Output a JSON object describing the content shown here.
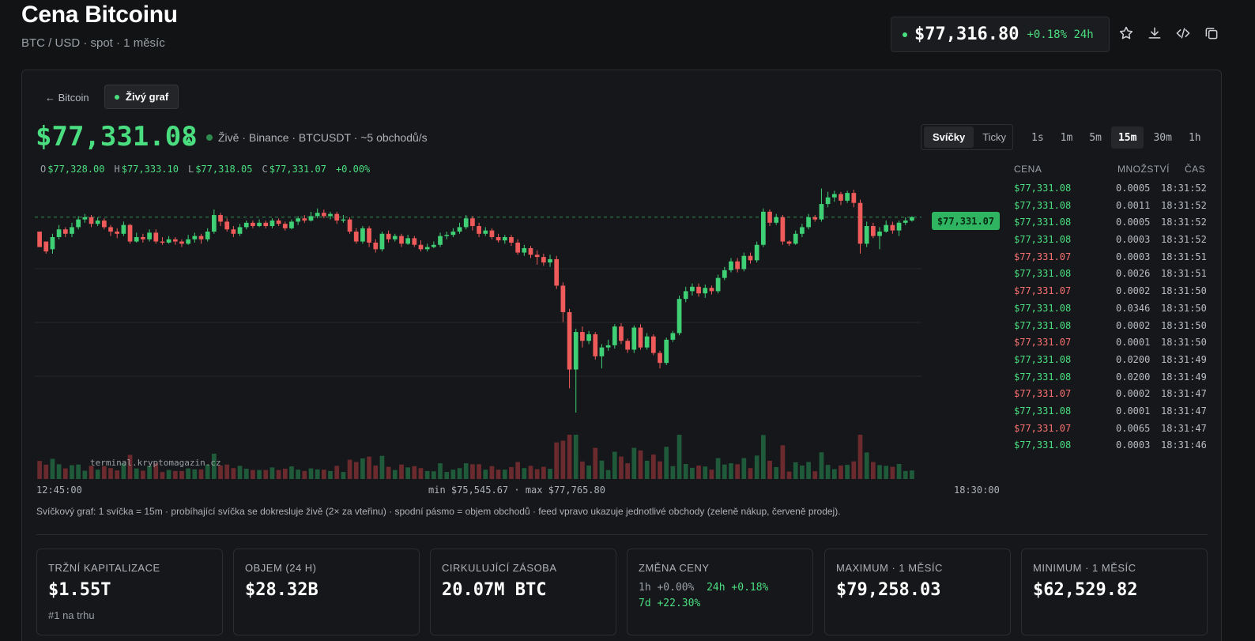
{
  "header": {
    "title": "Cena Bitcoinu",
    "subtitle": "BTC / USD · spot · 1 měsíc",
    "ticker_price": "$77,316.80",
    "ticker_change": "+0.18% 24h",
    "icons": [
      "star-icon",
      "download-icon",
      "code-icon",
      "copy-icon"
    ]
  },
  "tabs": {
    "back": "← Bitcoin",
    "live": "Živý graf"
  },
  "price": {
    "current": "$77,331.08",
    "arrow": "▲",
    "live_info": "Živě · Binance · BTCUSDT · ~5 obchodů/s"
  },
  "modes": [
    "Svíčky",
    "Ticky"
  ],
  "active_mode": "Svíčky",
  "intervals": [
    "1s",
    "1m",
    "5m",
    "15m",
    "30m",
    "1h"
  ],
  "active_interval": "15m",
  "ohlc": {
    "o_label": "O",
    "o": "$77,328.00",
    "h_label": "H",
    "h": "$77,333.10",
    "l_label": "L",
    "l": "$77,318.05",
    "c_label": "C",
    "c": "$77,331.07",
    "change": "+0.00%"
  },
  "chart": {
    "last_price_tag": "$77,331.07",
    "watermark": "terminal.kryptomagazin.cz",
    "x_start": "12:45:00",
    "x_range_text": "min $75,545.67 · max $77,765.80",
    "x_end": "18:30:00",
    "note": "Svíčkový graf: 1 svíčka = 15m · probíhající svíčka se dokresluje živě (2× za vteřinu) · spodní pásmo = objem obchodů · feed vpravo ukazuje jednotlivé obchody (zeleně nákup, červeně prodej).",
    "colors": {
      "up": "#3fcf75",
      "down": "#ef5a5a",
      "vol_up": "#1f5a3a",
      "vol_down": "#6b2a2d"
    }
  },
  "chart_data": {
    "type": "candlestick",
    "ylim": [
      75545.67,
      77765.8
    ],
    "last": 77331.07,
    "x_start": "12:45:00",
    "x_end": "18:30:00",
    "candles": [
      [
        77200,
        77060,
        77120,
        77110
      ],
      [
        77110,
        77020,
        77050,
        77000
      ],
      [
        77040,
        77150,
        77180,
        77000
      ],
      [
        77150,
        77220,
        77260,
        77130
      ],
      [
        77220,
        77180,
        77240,
        77150
      ],
      [
        77180,
        77240,
        77280,
        77150
      ],
      [
        77240,
        77310,
        77340,
        77220
      ],
      [
        77310,
        77330,
        77360,
        77280
      ],
      [
        77330,
        77270,
        77350,
        77240
      ],
      [
        77270,
        77300,
        77330,
        77250
      ],
      [
        77300,
        77240,
        77320,
        77220
      ],
      [
        77240,
        77200,
        77260,
        77160
      ],
      [
        77200,
        77180,
        77230,
        77140
      ],
      [
        77180,
        77260,
        77290,
        77160
      ],
      [
        77260,
        77110,
        77270,
        77090
      ],
      [
        77110,
        77150,
        77190,
        77100
      ],
      [
        77150,
        77130,
        77180,
        77100
      ],
      [
        77130,
        77190,
        77220,
        77110
      ],
      [
        77190,
        77110,
        77220,
        77090
      ],
      [
        77110,
        77100,
        77150,
        77080
      ],
      [
        77100,
        77130,
        77160,
        77090
      ],
      [
        77130,
        77110,
        77150,
        77080
      ],
      [
        77110,
        77090,
        77130,
        77060
      ],
      [
        77090,
        77130,
        77170,
        77080
      ],
      [
        77130,
        77160,
        77190,
        77100
      ],
      [
        77160,
        77130,
        77180,
        77090
      ],
      [
        77130,
        77200,
        77230,
        77110
      ],
      [
        77200,
        77350,
        77400,
        77180
      ],
      [
        77350,
        77290,
        77370,
        77250
      ],
      [
        77290,
        77220,
        77320,
        77200
      ],
      [
        77220,
        77180,
        77250,
        77150
      ],
      [
        77180,
        77240,
        77270,
        77160
      ],
      [
        77240,
        77280,
        77300,
        77220
      ],
      [
        77280,
        77250,
        77300,
        77230
      ],
      [
        77250,
        77280,
        77310,
        77240
      ],
      [
        77280,
        77250,
        77300,
        77230
      ],
      [
        77250,
        77300,
        77320,
        77230
      ],
      [
        77300,
        77270,
        77320,
        77250
      ],
      [
        77270,
        77230,
        77290,
        77210
      ],
      [
        77230,
        77290,
        77310,
        77220
      ],
      [
        77290,
        77320,
        77340,
        77260
      ],
      [
        77320,
        77300,
        77350,
        77280
      ],
      [
        77300,
        77340,
        77380,
        77290
      ],
      [
        77340,
        77370,
        77410,
        77320
      ],
      [
        77370,
        77340,
        77400,
        77320
      ],
      [
        77340,
        77360,
        77380,
        77310
      ],
      [
        77360,
        77300,
        77380,
        77270
      ],
      [
        77300,
        77310,
        77350,
        77280
      ],
      [
        77310,
        77200,
        77330,
        77180
      ],
      [
        77200,
        77110,
        77230,
        77090
      ],
      [
        77110,
        77230,
        77250,
        77090
      ],
      [
        77230,
        77100,
        77250,
        77060
      ],
      [
        77100,
        77040,
        77130,
        77010
      ],
      [
        77040,
        77180,
        77200,
        77020
      ],
      [
        77180,
        77130,
        77210,
        77100
      ],
      [
        77130,
        77160,
        77180,
        77110
      ],
      [
        77160,
        77090,
        77180,
        77060
      ],
      [
        77090,
        77140,
        77170,
        77080
      ],
      [
        77140,
        77080,
        77160,
        77060
      ],
      [
        77080,
        77040,
        77120,
        77020
      ],
      [
        77040,
        77060,
        77090,
        77020
      ],
      [
        77060,
        77080,
        77110,
        77050
      ],
      [
        77080,
        77160,
        77190,
        77060
      ],
      [
        77160,
        77170,
        77200,
        77130
      ],
      [
        77170,
        77200,
        77230,
        77150
      ],
      [
        77200,
        77240,
        77280,
        77180
      ],
      [
        77240,
        77320,
        77350,
        77220
      ],
      [
        77320,
        77250,
        77340,
        77210
      ],
      [
        77250,
        77180,
        77280,
        77150
      ],
      [
        77180,
        77210,
        77240,
        77160
      ],
      [
        77210,
        77150,
        77230,
        77130
      ],
      [
        77150,
        77120,
        77180,
        77100
      ],
      [
        77120,
        77150,
        77170,
        77090
      ],
      [
        77150,
        77100,
        77170,
        77070
      ],
      [
        77100,
        77010,
        77130,
        76990
      ],
      [
        77010,
        77050,
        77080,
        76980
      ],
      [
        77050,
        76990,
        77070,
        76960
      ],
      [
        76990,
        76970,
        77030,
        76900
      ],
      [
        76970,
        76920,
        77000,
        76890
      ],
      [
        76920,
        76950,
        76990,
        76880
      ],
      [
        76950,
        76710,
        76980,
        76680
      ],
      [
        76710,
        76470,
        76740,
        76380
      ],
      [
        76470,
        75950,
        76500,
        75780
      ],
      [
        75950,
        76290,
        76320,
        75560
      ],
      [
        76290,
        76210,
        76340,
        76150
      ],
      [
        76210,
        76270,
        76300,
        76180
      ],
      [
        76270,
        76070,
        76290,
        76040
      ],
      [
        76070,
        76150,
        76180,
        75960
      ],
      [
        76150,
        76170,
        76220,
        76120
      ],
      [
        76170,
        76340,
        76360,
        76140
      ],
      [
        76340,
        76210,
        76370,
        76180
      ],
      [
        76210,
        76130,
        76230,
        76100
      ],
      [
        76130,
        76330,
        76350,
        76100
      ],
      [
        76330,
        76150,
        76360,
        76130
      ],
      [
        76150,
        76250,
        76280,
        76130
      ],
      [
        76250,
        76100,
        76270,
        76080
      ],
      [
        76100,
        76010,
        76120,
        75960
      ],
      [
        76010,
        76220,
        76240,
        75990
      ],
      [
        76220,
        76280,
        76300,
        76200
      ],
      [
        76280,
        76590,
        76620,
        76260
      ],
      [
        76590,
        76660,
        76700,
        76560
      ],
      [
        76660,
        76700,
        76730,
        76620
      ],
      [
        76700,
        76640,
        76730,
        76610
      ],
      [
        76640,
        76690,
        76720,
        76600
      ],
      [
        76690,
        76660,
        76710,
        76630
      ],
      [
        76660,
        76780,
        76810,
        76640
      ],
      [
        76780,
        76850,
        76880,
        76760
      ],
      [
        76850,
        76930,
        76960,
        76830
      ],
      [
        76930,
        76860,
        76960,
        76830
      ],
      [
        76860,
        76980,
        77010,
        76840
      ],
      [
        76980,
        76940,
        77010,
        76910
      ],
      [
        76940,
        77080,
        77110,
        76920
      ],
      [
        77080,
        77380,
        77410,
        77060
      ],
      [
        77380,
        77280,
        77400,
        77250
      ],
      [
        77280,
        77330,
        77360,
        77260
      ],
      [
        77330,
        77110,
        77350,
        77080
      ],
      [
        77110,
        77090,
        77120,
        77070
      ],
      [
        77090,
        77180,
        77210,
        77080
      ],
      [
        77180,
        77240,
        77270,
        77150
      ],
      [
        77240,
        77330,
        77360,
        77220
      ],
      [
        77330,
        77310,
        77350,
        77290
      ],
      [
        77310,
        77450,
        77590,
        77290
      ],
      [
        77450,
        77510,
        77560,
        77420
      ],
      [
        77510,
        77540,
        77570,
        77470
      ],
      [
        77540,
        77480,
        77560,
        77440
      ],
      [
        77480,
        77550,
        77570,
        77460
      ],
      [
        77550,
        77460,
        77580,
        77420
      ],
      [
        77460,
        77090,
        77490,
        77000
      ],
      [
        77090,
        77250,
        77290,
        77060
      ],
      [
        77250,
        77160,
        77280,
        77140
      ],
      [
        77160,
        77200,
        77240,
        77040
      ],
      [
        77200,
        77260,
        77300,
        77190
      ],
      [
        77260,
        77210,
        77290,
        77180
      ],
      [
        77210,
        77280,
        77300,
        77160
      ],
      [
        77280,
        77300,
        77330,
        77260
      ],
      [
        77300,
        77331,
        77340,
        77290
      ]
    ]
  },
  "trades": {
    "headers": {
      "price": "CENA",
      "qty": "MNOŽSTVÍ",
      "time": "ČAS"
    },
    "rows": [
      {
        "price": "$77,331.08",
        "qty": "0.0005",
        "time": "18:31:52",
        "side": "buy"
      },
      {
        "price": "$77,331.08",
        "qty": "0.0011",
        "time": "18:31:52",
        "side": "buy"
      },
      {
        "price": "$77,331.08",
        "qty": "0.0005",
        "time": "18:31:52",
        "side": "buy"
      },
      {
        "price": "$77,331.08",
        "qty": "0.0003",
        "time": "18:31:52",
        "side": "buy"
      },
      {
        "price": "$77,331.07",
        "qty": "0.0003",
        "time": "18:31:51",
        "side": "sell"
      },
      {
        "price": "$77,331.08",
        "qty": "0.0026",
        "time": "18:31:51",
        "side": "buy"
      },
      {
        "price": "$77,331.07",
        "qty": "0.0002",
        "time": "18:31:50",
        "side": "sell"
      },
      {
        "price": "$77,331.08",
        "qty": "0.0346",
        "time": "18:31:50",
        "side": "buy"
      },
      {
        "price": "$77,331.08",
        "qty": "0.0002",
        "time": "18:31:50",
        "side": "buy"
      },
      {
        "price": "$77,331.07",
        "qty": "0.0001",
        "time": "18:31:50",
        "side": "sell"
      },
      {
        "price": "$77,331.08",
        "qty": "0.0200",
        "time": "18:31:49",
        "side": "buy"
      },
      {
        "price": "$77,331.08",
        "qty": "0.0200",
        "time": "18:31:49",
        "side": "buy"
      },
      {
        "price": "$77,331.07",
        "qty": "0.0002",
        "time": "18:31:47",
        "side": "sell"
      },
      {
        "price": "$77,331.08",
        "qty": "0.0001",
        "time": "18:31:47",
        "side": "buy"
      },
      {
        "price": "$77,331.07",
        "qty": "0.0065",
        "time": "18:31:47",
        "side": "sell"
      },
      {
        "price": "$77,331.08",
        "qty": "0.0003",
        "time": "18:31:46",
        "side": "buy"
      }
    ]
  },
  "stats": {
    "market_cap": {
      "label": "TRŽNÍ KAPITALIZACE",
      "value": "$1.55T",
      "sub": "#1 na trhu"
    },
    "volume": {
      "label": "OBJEM (24 H)",
      "value": "$28.32B"
    },
    "supply": {
      "label": "CIRKULUJÍCÍ ZÁSOBA",
      "value": "20.07M BTC"
    },
    "change": {
      "label": "ZMĚNA CENY",
      "h1_label": "1h",
      "h1": "+0.00%",
      "h24_label": "24h",
      "h24": "+0.18%",
      "d7_label": "7d",
      "d7": "+22.30%"
    },
    "max": {
      "label": "MAXIMUM · 1 MĚSÍC",
      "value": "$79,258.03"
    },
    "min": {
      "label": "MINIMUM · 1 MĚSÍC",
      "value": "$62,529.82"
    }
  }
}
